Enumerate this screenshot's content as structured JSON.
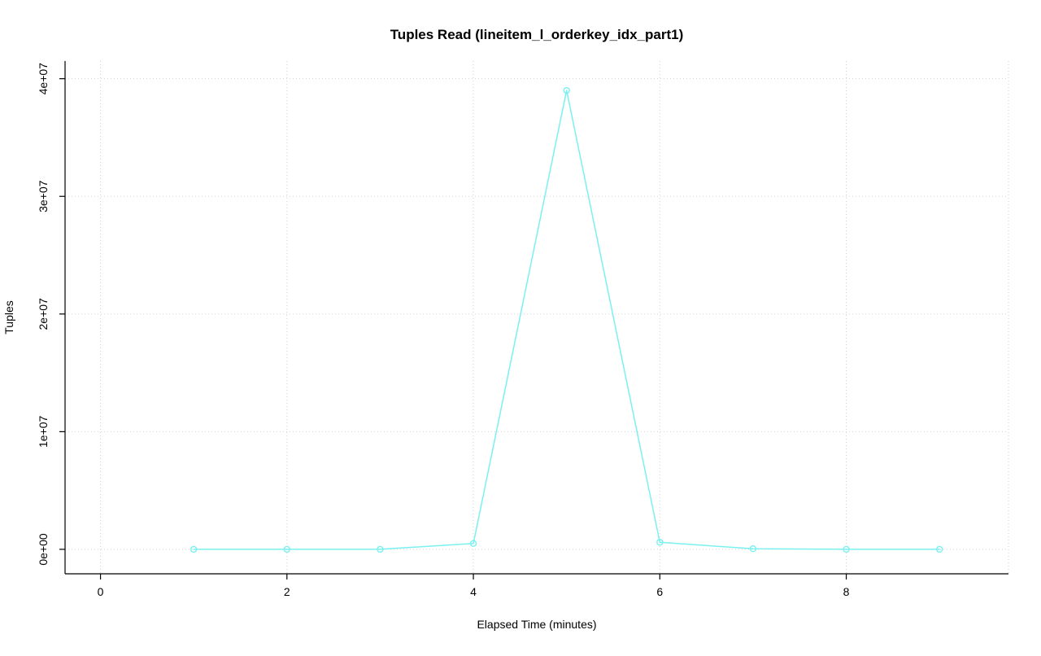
{
  "chart_data": {
    "type": "line",
    "title": "Tuples Read (lineitem_l_orderkey_idx_part1)",
    "xlabel": "Elapsed Time (minutes)",
    "ylabel": "Tuples",
    "x": [
      1,
      2,
      3,
      4,
      5,
      6,
      7,
      8,
      9
    ],
    "y": [
      0,
      0,
      0,
      500000,
      39000000,
      600000,
      50000,
      0,
      0
    ],
    "xticks": [
      0,
      2,
      4,
      6,
      8
    ],
    "xtick_labels": [
      "0",
      "2",
      "4",
      "6",
      "8"
    ],
    "yticks": [
      0,
      10000000,
      20000000,
      30000000,
      40000000
    ],
    "ytick_labels": [
      "0e+00",
      "1e+07",
      "2e+07",
      "3e+07",
      "4e+07"
    ],
    "xlim": [
      -0.38,
      9.74
    ],
    "ylim": [
      -2080000,
      41500000
    ],
    "grid": "dotted",
    "legend": "none",
    "colors": {
      "line": "#7bf0f0",
      "marker": "#7bf0f0",
      "grid": "#d2d2d2",
      "axis": "#000000",
      "background": "#ffffff"
    }
  }
}
